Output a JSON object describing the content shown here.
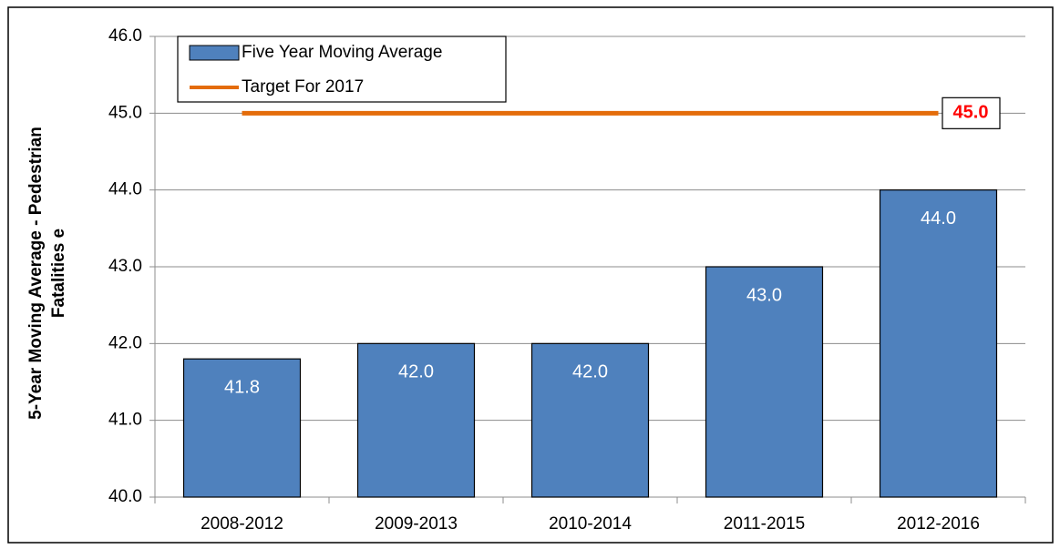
{
  "chart_data": {
    "type": "bar",
    "ylabel_lines": [
      "5-Year Moving  Average - Pedestrian",
      "Fatalities e"
    ],
    "categories": [
      "2008-2012",
      "2009-2013",
      "2010-2014",
      "2011-2015",
      "2012-2016"
    ],
    "series": [
      {
        "name": "Five Year Moving Average",
        "color": "#4f81bd",
        "values": [
          41.8,
          42,
          42,
          43,
          44
        ],
        "value_labels": [
          "41.8",
          "42.0",
          "42.0",
          "43.0",
          "44.0"
        ]
      }
    ],
    "target": {
      "name": "Target For 2017",
      "color": "#e46c0a",
      "value": 45,
      "value_label": "45.0",
      "label_color": "#ff0000"
    },
    "ylim": [
      40,
      46
    ],
    "yticks": [
      {
        "value": 40,
        "label": "40.0"
      },
      {
        "value": 41,
        "label": "41.0"
      },
      {
        "value": 42,
        "label": "42.0"
      },
      {
        "value": 43,
        "label": "43.0"
      },
      {
        "value": 44,
        "label": "44.0"
      },
      {
        "value": 45,
        "label": "45.0"
      },
      {
        "value": 46,
        "label": "46.0"
      }
    ],
    "grid": true,
    "legend": "top-left"
  }
}
